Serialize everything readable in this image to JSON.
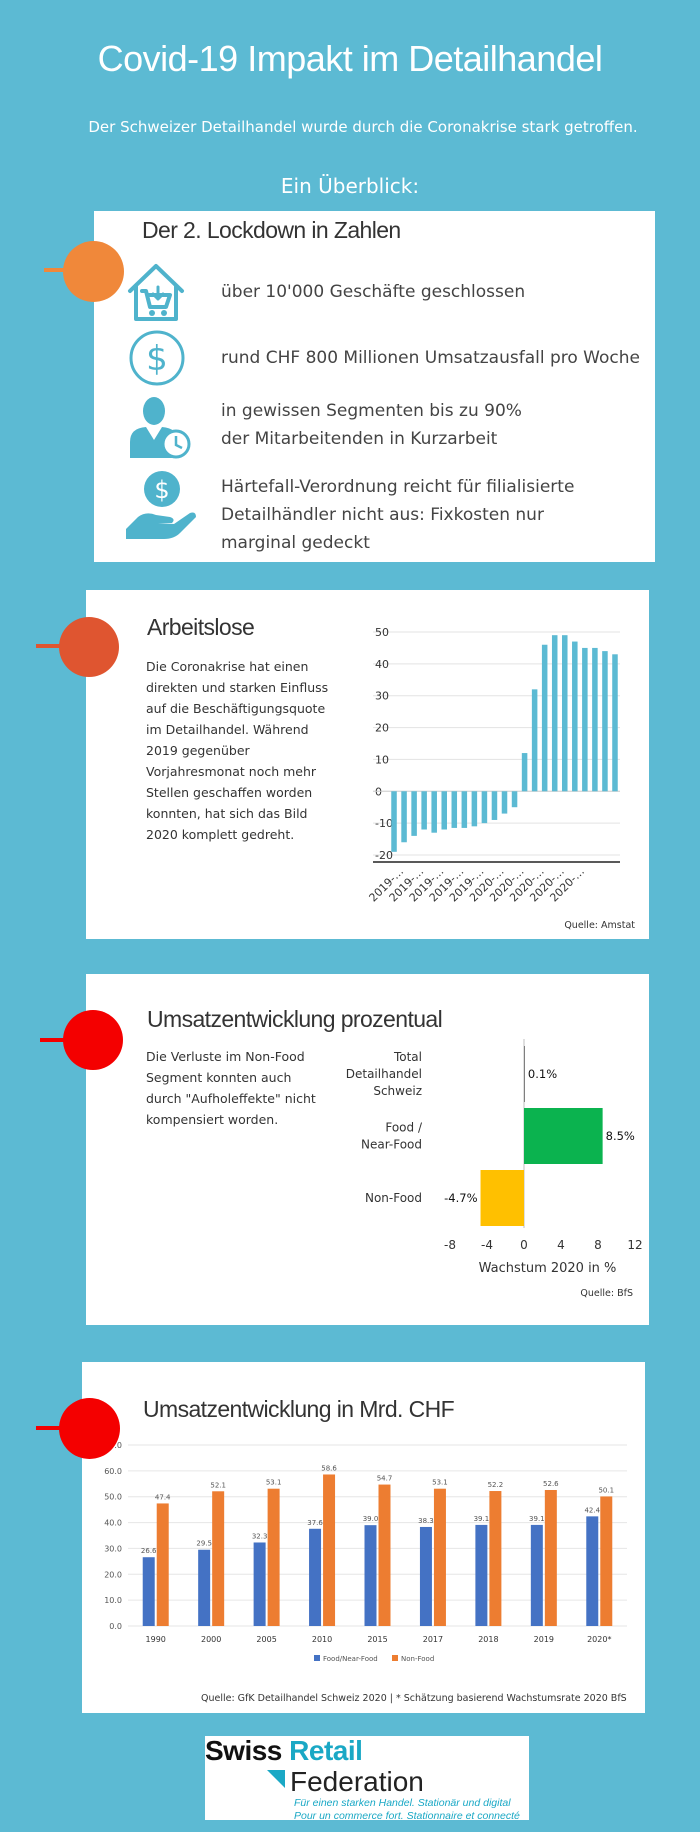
{
  "header": {
    "title": "Covid-19 Impakt im Detailhandel",
    "subtitle": "Der Schweizer Detailhandel wurde durch die Coronakrise stark getroffen.",
    "overview": "Ein Überblick:"
  },
  "lockdown": {
    "title": "Der 2. Lockdown in Zahlen",
    "items": [
      {
        "icon": "store-cart-icon",
        "text": "über 10'000 Geschäfte geschlossen"
      },
      {
        "icon": "dollar-coin-icon",
        "text": "rund CHF 800 Millionen Umsatzausfall pro Woche"
      },
      {
        "icon": "employee-clock-icon",
        "text": "in gewissen Segmenten bis zu 90%\nder Mitarbeitenden in Kurzarbeit"
      },
      {
        "icon": "hand-coin-icon",
        "text": "Härtefall-Verordnung reicht für filialisierte\nDetailhändler nicht aus: Fixkosten nur\nmarginal gedeckt"
      }
    ]
  },
  "arbeitslose": {
    "title": "Arbeitslose",
    "text": "Die Coronakrise hat einen direkten und starken Einfluss auf die Beschäftigungsquote im Detailhandel. Während 2019 gegenüber Vorjahresmonat noch mehr Stellen geschaffen worden konnten, hat sich das Bild 2020 komplett gedreht.",
    "source": "Quelle: Amstat"
  },
  "umsatz_prozent": {
    "title": "Umsatzentwicklung prozentual",
    "text": "Die Verluste im Non-Food Segment konnten auch durch \"Aufholeffekte\" nicht kompensiert worden.",
    "source": "Quelle: BfS"
  },
  "umsatz_chf": {
    "title": "Umsatzentwicklung in Mrd. CHF",
    "source": "Quelle: GfK Detailhandel Schweiz 2020 | * Schätzung basierend Wachstumsrate 2020 BfS"
  },
  "logo": {
    "line1a": "Swiss",
    "line1b": "Retail",
    "line2": "Federation",
    "tag1": "Für einen starken Handel. Stationär und digital",
    "tag2": "Pour un commerce fort. Stationnaire et connecté"
  },
  "colors": {
    "background": "#5cbad3",
    "accent_blue": "#4fb3cc",
    "orange": "#f0883a",
    "red_orange": "#df5530",
    "red": "#f40000",
    "green": "#0bb34f",
    "yellow": "#ffc000",
    "bar_blue": "#4472c4",
    "bar_orange": "#ed7d31"
  },
  "chart_data": [
    {
      "type": "bar",
      "categories": [
        "2019-…",
        "2019-…",
        "2019-…",
        "2019-…",
        "2019-…",
        "2019-…",
        "2019-…",
        "2019-…",
        "2019-…",
        "2019-…",
        "2019-…",
        "2019-…",
        "2020-…",
        "2020-…",
        "2020-…",
        "2020-…",
        "2020-…",
        "2020-…",
        "2020-…",
        "2020-…",
        "2020-…",
        "2020-…",
        "2020-…"
      ],
      "tick_labels": [
        "2019-…",
        "2019-…",
        "2019-…",
        "2019-…",
        "2019-…",
        "2020-…",
        "2020-…",
        "2020-…",
        "2020-…",
        "2020-…"
      ],
      "values": [
        -19,
        -16,
        -14,
        -12,
        -13,
        -12,
        -11.5,
        -11.5,
        -11,
        -10,
        -9,
        -7,
        -5,
        12,
        32,
        46,
        49,
        49,
        47,
        45,
        45,
        44,
        43
      ],
      "ylim": [
        -20,
        50
      ],
      "yticks": [
        -20,
        -10,
        0,
        10,
        20,
        30,
        40,
        50
      ],
      "color": "#5cbad3"
    },
    {
      "type": "bar",
      "orientation": "horizontal",
      "categories": [
        "Total Detailhandel Schweiz",
        "Food / Near-Food",
        "Non-Food"
      ],
      "category_lines": [
        [
          "Total",
          "Detailhandel",
          "Schweiz"
        ],
        [
          "Food /",
          "Near-Food"
        ],
        [
          "Non-Food"
        ]
      ],
      "values": [
        0.1,
        8.5,
        -4.7
      ],
      "data_labels": [
        "0.1%",
        "8.5%",
        "-4.7%"
      ],
      "colors": [
        "#7f7f7f",
        "#0bb34f",
        "#ffc000"
      ],
      "xlabel": "Wachstum 2020 in %",
      "xlim": [
        -8,
        12
      ],
      "xticks": [
        -8,
        -4,
        0,
        4,
        8,
        12
      ]
    },
    {
      "type": "bar",
      "categories": [
        "1990",
        "2000",
        "2005",
        "2010",
        "2015",
        "2017",
        "2018",
        "2019",
        "2020*"
      ],
      "series": [
        {
          "name": "Food/Near-Food",
          "values": [
            26.6,
            29.5,
            32.3,
            37.6,
            39.0,
            38.3,
            39.1,
            39.1,
            42.4
          ],
          "labels": [
            "26.6",
            "29.5",
            "32.3",
            "37.6",
            "39.0",
            "38.3",
            "39.1",
            "39.1",
            "42.4"
          ],
          "color": "#4472c4"
        },
        {
          "name": "Non-Food",
          "values": [
            47.4,
            52.1,
            53.1,
            58.6,
            54.7,
            53.1,
            52.2,
            52.6,
            50.1
          ],
          "labels": [
            "47.4",
            "52.1",
            "53.1",
            "58.6",
            "54.7",
            "53.1",
            "52.2",
            "52.6",
            "50.1"
          ],
          "color": "#ed7d31"
        }
      ],
      "ylim": [
        0,
        70
      ],
      "yticks": [
        "0.0",
        "10.0",
        "20.0",
        "30.0",
        "40.0",
        "50.0",
        "60.0",
        "70.0"
      ],
      "legend": "bottom"
    }
  ]
}
